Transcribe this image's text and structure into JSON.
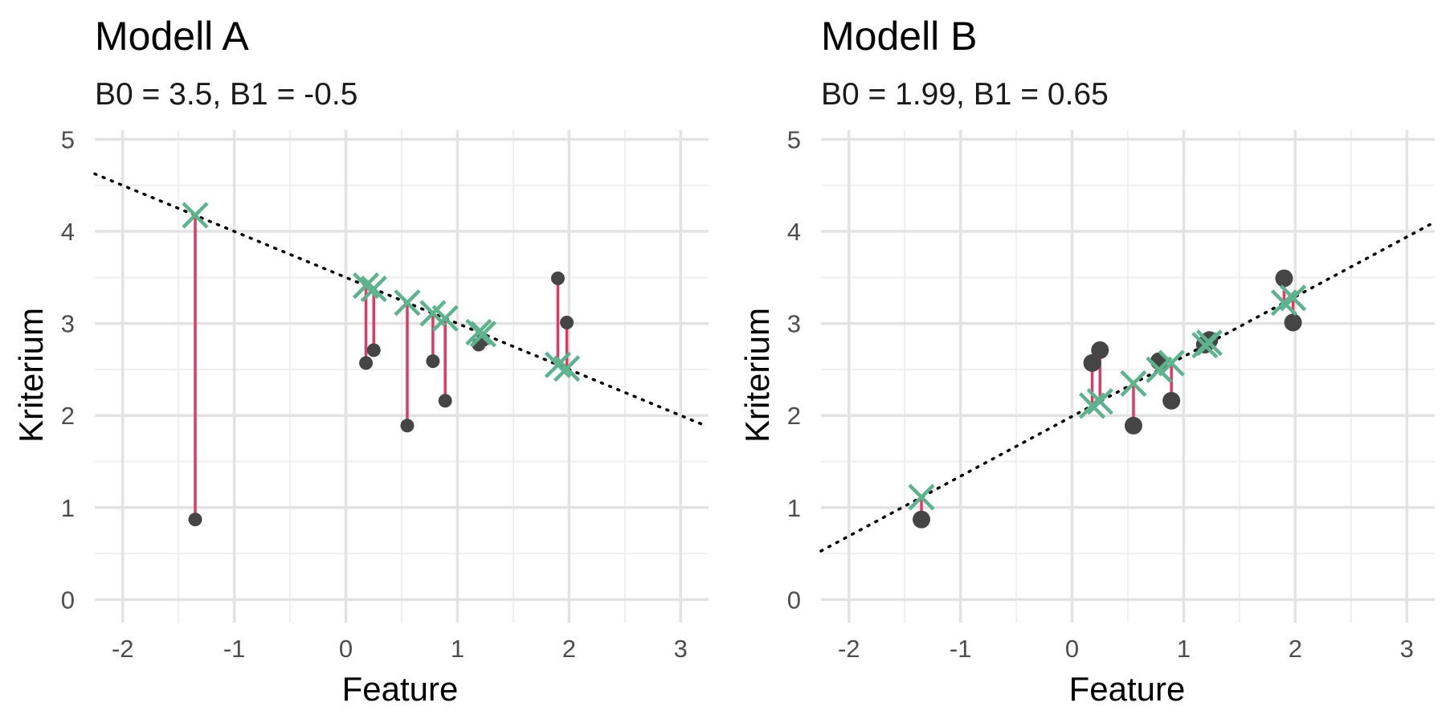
{
  "colors": {
    "background": "#ffffff",
    "grid_major": "#e3e3e3",
    "grid_minor": "#efefef",
    "observed_point": "#454545",
    "predicted_marker": "#5db38d",
    "residual_line": "#de3a62",
    "regression_line": "#000000"
  },
  "chart_data": [
    {
      "type": "scatter",
      "title": "Modell A",
      "subtitle": "B0 = 3.5, B1 = -0.5",
      "xlabel": "Feature",
      "ylabel": "Kriterium",
      "xlim": [
        -2.25,
        3.25
      ],
      "ylim": [
        -0.25,
        5.1
      ],
      "x_ticks": [
        -2,
        -1,
        0,
        1,
        2,
        3
      ],
      "x_tick_labels": [
        "-2",
        "-1",
        "0",
        "1",
        "2",
        "3"
      ],
      "y_ticks": [
        0,
        1,
        2,
        3,
        4,
        5
      ],
      "y_tick_labels": [
        "0",
        "1",
        "2",
        "3",
        "4",
        "5"
      ],
      "grid": true,
      "model": {
        "b0": 3.5,
        "b1": -0.5
      },
      "line_x_range": [
        -2.25,
        3.2
      ],
      "observed_marker": "dot",
      "predicted_marker": "X",
      "points": [
        {
          "x": -1.35,
          "y": 0.87
        },
        {
          "x": 0.18,
          "y": 2.57
        },
        {
          "x": 0.25,
          "y": 2.71
        },
        {
          "x": 0.55,
          "y": 1.89
        },
        {
          "x": 0.78,
          "y": 2.59
        },
        {
          "x": 0.89,
          "y": 2.16
        },
        {
          "x": 1.19,
          "y": 2.77
        },
        {
          "x": 1.23,
          "y": 2.82
        },
        {
          "x": 1.9,
          "y": 3.49
        },
        {
          "x": 1.98,
          "y": 3.01
        }
      ]
    },
    {
      "type": "scatter",
      "title": "Modell B",
      "subtitle": "B0 = 1.99, B1 = 0.65",
      "xlabel": "Feature",
      "ylabel": "Kriterium",
      "xlim": [
        -2.25,
        3.25
      ],
      "ylim": [
        -0.25,
        5.1
      ],
      "x_ticks": [
        -2,
        -1,
        0,
        1,
        2,
        3
      ],
      "x_tick_labels": [
        "-2",
        "-1",
        "0",
        "1",
        "2",
        "3"
      ],
      "y_ticks": [
        0,
        1,
        2,
        3,
        4,
        5
      ],
      "y_tick_labels": [
        "0",
        "1",
        "2",
        "3",
        "4",
        "5"
      ],
      "grid": true,
      "model": {
        "b0": 1.99,
        "b1": 0.65
      },
      "line_x_range": [
        -2.25,
        3.25
      ],
      "observed_marker": "dot",
      "predicted_marker": "X",
      "points": [
        {
          "x": -1.35,
          "y": 0.87
        },
        {
          "x": 0.18,
          "y": 2.57
        },
        {
          "x": 0.25,
          "y": 2.71
        },
        {
          "x": 0.55,
          "y": 1.89
        },
        {
          "x": 0.78,
          "y": 2.59
        },
        {
          "x": 0.89,
          "y": 2.16
        },
        {
          "x": 1.19,
          "y": 2.77
        },
        {
          "x": 1.23,
          "y": 2.82
        },
        {
          "x": 1.9,
          "y": 3.49
        },
        {
          "x": 1.98,
          "y": 3.01
        }
      ]
    }
  ]
}
